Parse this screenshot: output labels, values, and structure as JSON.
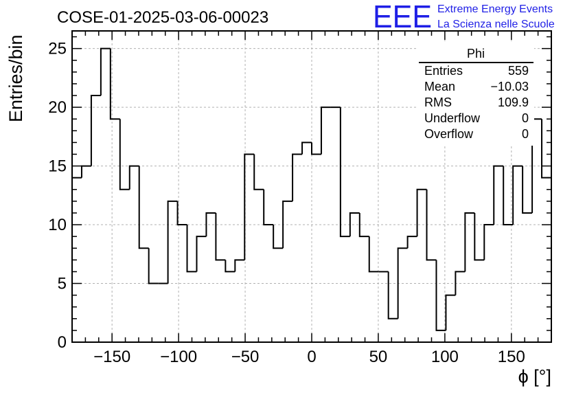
{
  "run_title": "COSE-01-2025-03-06-00023",
  "logo": {
    "letters": "EEE",
    "line1": "Extreme Energy Events",
    "line2": "La Scienza nelle Scuole",
    "color": "#1f1fe6"
  },
  "stats_box": {
    "title": "Phi",
    "rows": [
      {
        "label": "Entries",
        "value": "559"
      },
      {
        "label": "Mean",
        "value": "−10.03"
      },
      {
        "label": "RMS",
        "value": "109.9"
      },
      {
        "label": "Underflow",
        "value": "0"
      },
      {
        "label": "Overflow",
        "value": "0"
      }
    ]
  },
  "chart_data": {
    "type": "histogram",
    "xlabel": "ϕ [°]",
    "ylabel": "Entries/bin",
    "xlim": [
      -180,
      180
    ],
    "ylim": [
      0,
      26.5
    ],
    "bin_width": 7.2,
    "x_ticks": [
      -150,
      -100,
      -50,
      0,
      50,
      100,
      150
    ],
    "x_tick_labels": [
      "−150",
      "−100",
      "−50",
      "0",
      "50",
      "100",
      "150"
    ],
    "y_ticks": [
      0,
      5,
      10,
      15,
      20,
      25
    ],
    "y_tick_labels": [
      "0",
      "5",
      "10",
      "15",
      "20",
      "25"
    ],
    "grid": true,
    "counts": [
      14,
      15,
      21,
      25,
      19,
      13,
      15,
      8,
      5,
      5,
      12,
      10,
      6,
      9,
      11,
      7,
      6,
      7,
      16,
      13,
      10,
      8,
      12,
      16,
      17,
      16,
      20,
      20,
      9,
      11,
      9,
      6,
      6,
      2,
      8,
      9,
      13,
      7,
      1,
      4,
      6,
      11,
      7,
      10,
      15,
      10,
      15,
      11,
      19,
      14
    ],
    "line_color": "#000000"
  }
}
